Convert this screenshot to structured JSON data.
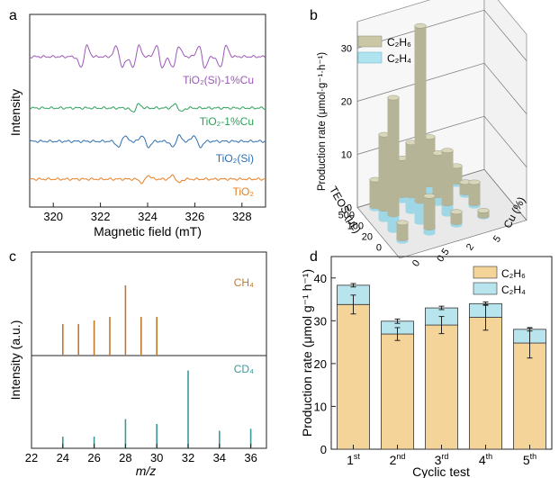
{
  "panels": {
    "a": {
      "letter": "a",
      "xlabel": "Magnetic field (mT)",
      "ylabel": "Intensity",
      "xticks": [
        "320",
        "322",
        "324",
        "326",
        "328"
      ],
      "traces": [
        {
          "label": "TiO₂(Si)-1%Cu",
          "color": "#9b59b6"
        },
        {
          "label": "TiO₂-1%Cu",
          "color": "#2ca05a"
        },
        {
          "label": "TiO₂(Si)",
          "color": "#2e6fb0"
        },
        {
          "label": "TiO₂",
          "color": "#e67e22"
        }
      ]
    },
    "b": {
      "letter": "b",
      "zlabel": "Production rate (μmol·g⁻¹·h⁻¹)",
      "zticks": [
        "0",
        "10",
        "20",
        "30"
      ],
      "xlabel": "TEOS (μL)",
      "xticks": [
        "500",
        "100",
        "20",
        "0"
      ],
      "ylabel": "Cu (%)",
      "yticks": [
        "0",
        "0.5",
        "2",
        "5"
      ],
      "legend": [
        {
          "label": "C₂H₆",
          "color": "#c9c7a6"
        },
        {
          "label": "C₂H₄",
          "color": "#aee3ef"
        }
      ]
    },
    "c": {
      "letter": "c",
      "xlabel": "m/z",
      "ylabel": "Intensity (a.u.)",
      "xticks": [
        "22",
        "24",
        "26",
        "28",
        "30",
        "32",
        "34",
        "36"
      ],
      "top_label": "CH₄",
      "bottom_label": "CD₄"
    },
    "d": {
      "letter": "d",
      "xlabel": "Cyclic test",
      "ylabel": "Production rate (μmol g⁻¹ h⁻¹)",
      "yticks": [
        "0",
        "10",
        "20",
        "30",
        "40"
      ],
      "legend": [
        {
          "label": "C₂H₆",
          "color": "#f5d49a"
        },
        {
          "label": "C₂H₄",
          "color": "#b8e4ee"
        }
      ]
    }
  },
  "chart_data": [
    {
      "type": "line",
      "title": "",
      "xlabel": "Magnetic field (mT)",
      "ylabel": "Intensity",
      "xlim": [
        319,
        329
      ],
      "series": [
        {
          "name": "TiO₂(Si)-1%Cu"
        },
        {
          "name": "TiO₂-1%Cu"
        },
        {
          "name": "TiO₂(Si)"
        },
        {
          "name": "TiO₂"
        }
      ]
    },
    {
      "type": "bar",
      "title": "",
      "zlabel": "Production rate (μmol·g⁻¹·h⁻¹)",
      "zlim": [
        0,
        35
      ],
      "teos": [
        "500",
        "100",
        "20",
        "0"
      ],
      "cu": [
        "0",
        "0.5",
        "2",
        "5"
      ],
      "series": [
        {
          "name": "C₂H₆",
          "values": [
            [
              5,
              7,
              9,
              3
            ],
            [
              14,
              10,
              8,
              2
            ],
            [
              22,
              33,
              10,
              4
            ],
            [
              3,
              6,
              2,
              1
            ]
          ]
        },
        {
          "name": "C₂H₄",
          "values": [
            [
              0.5,
              1,
              1.5,
              0.5
            ],
            [
              2,
              3,
              1.5,
              0.5
            ],
            [
              3,
              4,
              2,
              0.5
            ],
            [
              0.5,
              1,
              0.5,
              0.2
            ]
          ]
        }
      ]
    },
    {
      "type": "bar",
      "title": "",
      "xlabel": "m/z",
      "ylabel": "Intensity (a.u.)",
      "xlim": [
        22,
        37
      ],
      "series": [
        {
          "name": "CH₄",
          "x": [
            24,
            25,
            26,
            27,
            28,
            29,
            30
          ],
          "values": [
            0.45,
            0.45,
            0.5,
            0.55,
            1.0,
            0.55,
            0.55
          ]
        },
        {
          "name": "CD₄",
          "x": [
            24,
            26,
            28,
            30,
            32,
            34,
            36
          ],
          "values": [
            0.12,
            0.12,
            0.3,
            0.25,
            0.8,
            0.18,
            0.2
          ]
        }
      ]
    },
    {
      "type": "bar",
      "stacked": true,
      "title": "",
      "xlabel": "Cyclic test",
      "ylabel": "Production rate (μmol g⁻¹ h⁻¹)",
      "ylim": [
        0,
        45
      ],
      "categories": [
        {
          "n": "1",
          "sup": "st"
        },
        {
          "n": "2",
          "sup": "nd"
        },
        {
          "n": "3",
          "sup": "rd"
        },
        {
          "n": "4",
          "sup": "th"
        },
        {
          "n": "5",
          "sup": "th"
        }
      ],
      "series": [
        {
          "name": "C₂H₆",
          "values": [
            33.8,
            26.9,
            29.0,
            30.8,
            24.8
          ],
          "errors": [
            2.2,
            1.5,
            2.0,
            3.0,
            3.5
          ]
        },
        {
          "name": "C₂H₄",
          "values": [
            4.5,
            3.0,
            4.0,
            3.2,
            3.2
          ],
          "errors": [
            0.4,
            0.5,
            0.4,
            0.4,
            0.4
          ]
        }
      ]
    }
  ]
}
